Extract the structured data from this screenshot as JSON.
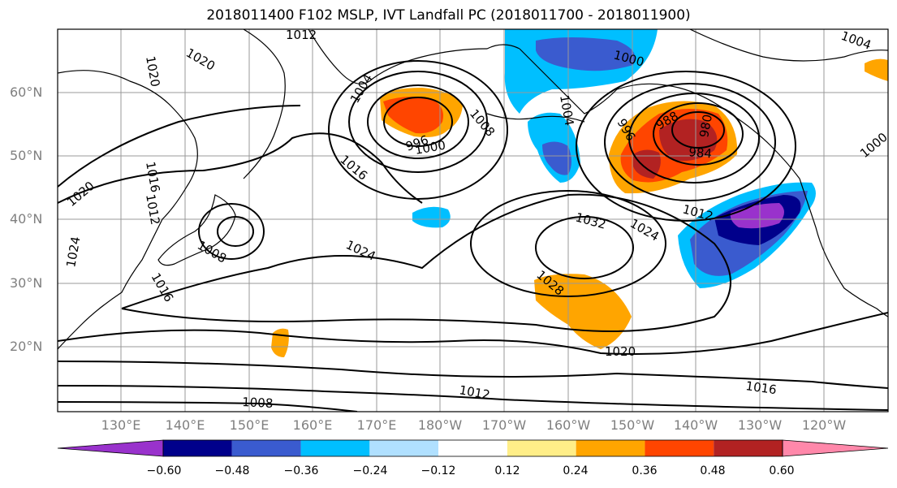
{
  "title": "2018011400 F102 MSLP, IVT Landfall PC (2018011700 - 2018011900)",
  "lat_labels": [
    "60°N",
    "50°N",
    "40°N",
    "30°N",
    "20°N"
  ],
  "lon_labels": [
    "130°E",
    "140°E",
    "150°E",
    "160°E",
    "170°E",
    "180°W",
    "170°W",
    "160°W",
    "150°W",
    "140°W",
    "130°W",
    "120°W"
  ],
  "colorbar": {
    "colors": [
      "#9932CC",
      "#00008B",
      "#3A5BCF",
      "#00BFFF",
      "#B0E0FF",
      "#FFFFFF",
      "#FFEE88",
      "#FFA500",
      "#FF4500",
      "#B22222",
      "#FF88AA"
    ],
    "tick_labels": [
      "−0.60",
      "−0.48",
      "−0.36",
      "−0.24",
      "−0.12",
      "0.12",
      "0.24",
      "0.36",
      "0.48",
      "0.60"
    ]
  },
  "contour_labels": [
    "1012",
    "1020",
    "1020",
    "1004",
    "996",
    "1000",
    "1008",
    "1016",
    "1016",
    "1004",
    "1000",
    "1004",
    "996",
    "988",
    "980",
    "984",
    "1000",
    "1012",
    "1012",
    "1020",
    "1024",
    "1008",
    "1016",
    "1024",
    "1024",
    "1032",
    "1028",
    "1020",
    "1012",
    "1008",
    "1016"
  ]
}
